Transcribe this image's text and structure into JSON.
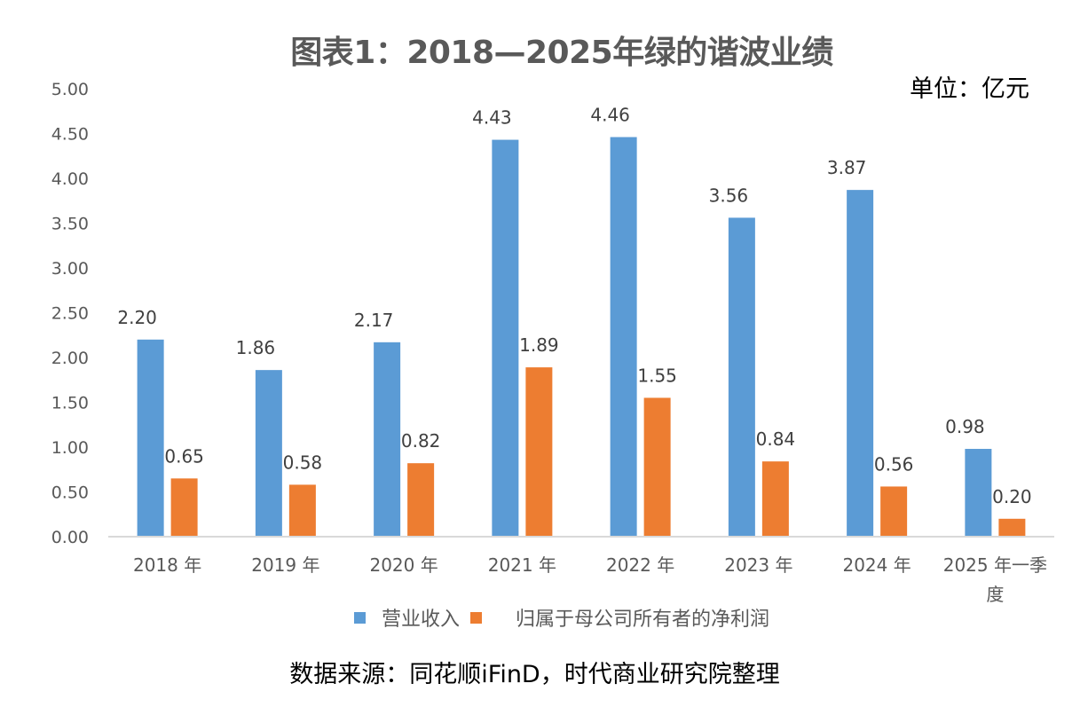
{
  "chart_data": {
    "type": "bar",
    "title": "图表1：2018—2025年绿的谐波业绩",
    "unit": "单位：亿元",
    "xlabel": "",
    "ylabel": "",
    "ylim": [
      0,
      5
    ],
    "yticks": [
      "0.00",
      "0.50",
      "1.00",
      "1.50",
      "2.00",
      "2.50",
      "3.00",
      "3.50",
      "4.00",
      "4.50",
      "5.00"
    ],
    "grid": false,
    "legend_position": "bottom",
    "categories": [
      "2018 年",
      "2019 年",
      "2020 年",
      "2021 年",
      "2022 年",
      "2023 年",
      "2024 年",
      "2025 年一季度"
    ],
    "category_lines": [
      [
        "2018 年"
      ],
      [
        "2019 年"
      ],
      [
        "2020 年"
      ],
      [
        "2021 年"
      ],
      [
        "2022 年"
      ],
      [
        "2023 年"
      ],
      [
        "2024 年"
      ],
      [
        "2025 年一季",
        "度"
      ]
    ],
    "series": [
      {
        "name": "营业收入",
        "color": "#5B9BD5",
        "values": [
          2.2,
          1.86,
          2.17,
          4.43,
          4.46,
          3.56,
          3.87,
          0.98
        ],
        "labels": [
          "2.20",
          "1.86",
          "2.17",
          "4.43",
          "4.46",
          "3.56",
          "3.87",
          "0.98"
        ]
      },
      {
        "name": "归属于母公司所有者的净利润",
        "color": "#ED7D31",
        "values": [
          0.65,
          0.58,
          0.82,
          1.89,
          1.55,
          0.84,
          0.56,
          0.2
        ],
        "labels": [
          "0.65",
          "0.58",
          "0.82",
          "1.89",
          "1.55",
          "0.84",
          "0.56",
          "0.20"
        ]
      }
    ],
    "source": "数据来源：同花顺iFinD，时代商业研究院整理"
  }
}
